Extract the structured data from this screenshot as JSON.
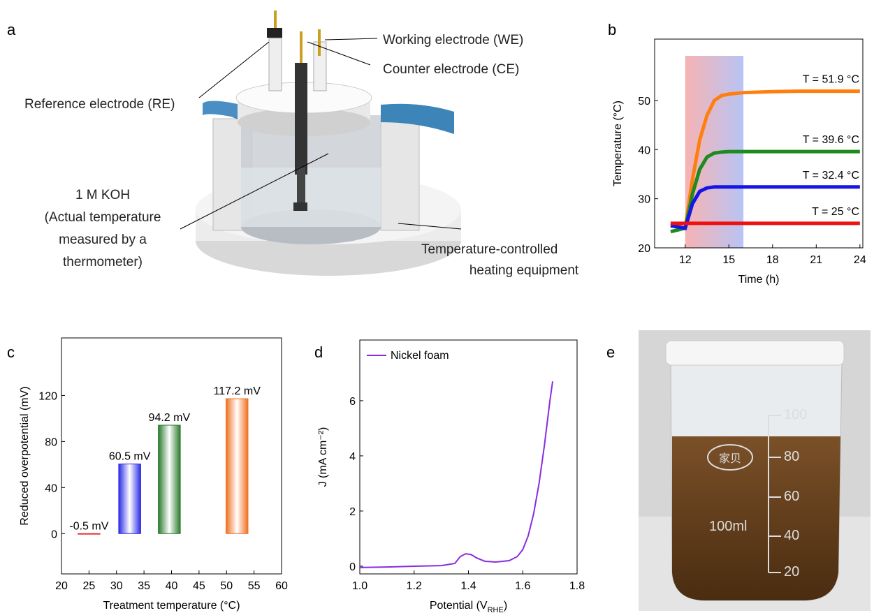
{
  "panels": {
    "a": "a",
    "b": "b",
    "c": "c",
    "d": "d",
    "e": "e"
  },
  "diagram": {
    "labels": [
      "Working electrode (WE)",
      "Counter electrode (CE)",
      "Reference electrode (RE)",
      "1 M KOH",
      "(Actual temperature",
      "measured by a",
      "thermometer)",
      "Temperature-controlled",
      "heating equipment"
    ]
  },
  "photo": {
    "scale": [
      "100",
      "80",
      "60",
      "40",
      "20"
    ],
    "logo": "家贝",
    "volume": "100ml"
  },
  "chart_data": [
    {
      "type": "line",
      "x_label": "Time (h)",
      "y_label": "Temperature (°C)",
      "x": [
        11,
        12,
        12.5,
        13,
        13.5,
        14,
        14.5,
        15,
        16,
        18,
        20,
        22,
        24
      ],
      "xlim": [
        9.9,
        24.2
      ],
      "xticks": [
        12,
        15,
        18,
        21,
        24
      ],
      "ylim": [
        20,
        62.5
      ],
      "yticks": [
        20,
        30,
        40,
        50
      ],
      "highlight": [
        12,
        16
      ],
      "series": [
        {
          "name": "T = 51.9 °C",
          "color": "#ff7f0e",
          "values": [
            25,
            24,
            34,
            42,
            47,
            50,
            51,
            51.3,
            51.6,
            51.8,
            51.9,
            51.9,
            51.9
          ]
        },
        {
          "name": "T = 39.6 °C",
          "color": "#1f8a1f",
          "values": [
            23.3,
            24,
            31,
            36,
            38.5,
            39.3,
            39.5,
            39.6,
            39.6,
            39.6,
            39.6,
            39.6,
            39.6
          ]
        },
        {
          "name": "T = 32.4 °C",
          "color": "#1515e6",
          "values": [
            24.5,
            24,
            29,
            31.5,
            32.2,
            32.4,
            32.4,
            32.4,
            32.4,
            32.4,
            32.4,
            32.4,
            32.4
          ]
        },
        {
          "name": "T = 25 °C",
          "color": "#ee1111",
          "values": [
            25,
            25,
            25,
            25,
            25,
            25,
            25,
            25,
            25,
            25,
            25,
            25,
            25
          ]
        }
      ]
    },
    {
      "type": "bar",
      "x_label": "Treatment temperature (°C)",
      "y_label": "Reduced overpotential (mV)",
      "x": [
        25,
        32.4,
        39.6,
        51.9
      ],
      "values": [
        -0.5,
        60.5,
        94.2,
        117.2
      ],
      "value_labels": [
        "-0.5 mV",
        "60.5 mV",
        "94.2 mV",
        "117.2 mV"
      ],
      "colors": [
        "#e02020",
        "#2a2ae8",
        "#2a7a2a",
        "#f07020"
      ],
      "xlim": [
        20,
        60
      ],
      "xticks": [
        20,
        25,
        30,
        35,
        40,
        45,
        50,
        55,
        60
      ],
      "ylim": [
        -35,
        170
      ],
      "yticks": [
        0,
        40,
        80,
        120
      ]
    },
    {
      "type": "line",
      "x_label": "Potential (V",
      "x_label_sub": "RHE",
      "x_label_end": ")",
      "y_label": "J (mA cm⁻²)",
      "x": [
        1.0,
        1.1,
        1.2,
        1.3,
        1.35,
        1.37,
        1.39,
        1.41,
        1.43,
        1.46,
        1.5,
        1.55,
        1.58,
        1.6,
        1.62,
        1.64,
        1.66,
        1.68,
        1.7,
        1.71
      ],
      "xlim": [
        1.0,
        1.8
      ],
      "xticks": [
        {
          "value": 1.0,
          "label": "1.0"
        },
        1.2,
        1.4,
        1.6,
        1.8
      ],
      "ylim": [
        -0.28,
        8.2
      ],
      "yticks": [
        0,
        2,
        4,
        6
      ],
      "legend": "upper left",
      "series": [
        {
          "name": "Nickel foam",
          "color": "#8a2be2",
          "values": [
            -0.05,
            -0.03,
            0,
            0.02,
            0.1,
            0.35,
            0.45,
            0.42,
            0.3,
            0.18,
            0.15,
            0.2,
            0.35,
            0.6,
            1.1,
            1.9,
            3.0,
            4.4,
            6.0,
            6.7
          ]
        }
      ]
    }
  ]
}
